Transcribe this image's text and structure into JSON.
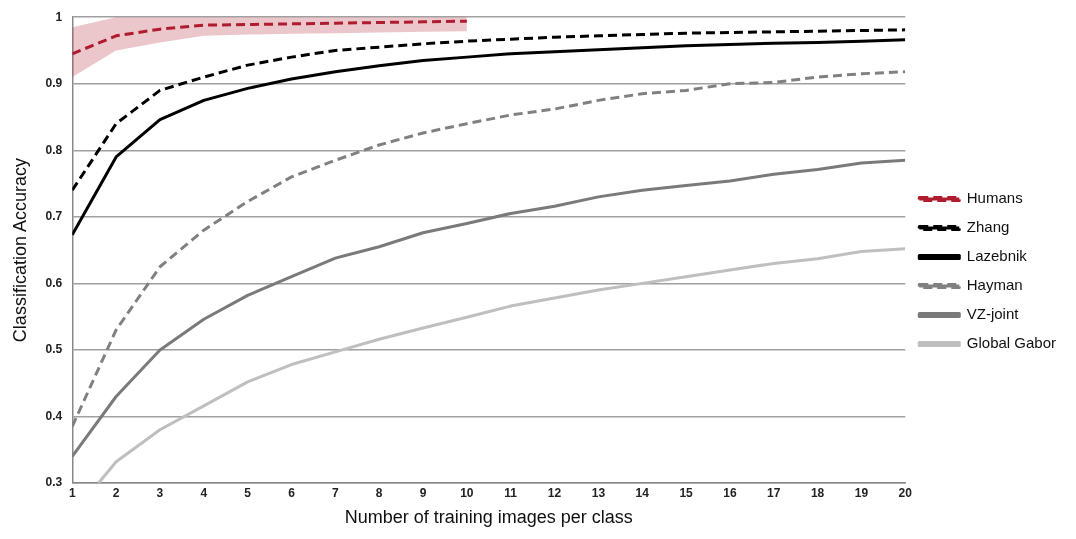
{
  "chart_data": {
    "type": "line",
    "xlabel": "Number of training images per class",
    "ylabel": "Classification Accuracy",
    "x": [
      1,
      2,
      3,
      4,
      5,
      6,
      7,
      8,
      9,
      10,
      11,
      12,
      13,
      14,
      15,
      16,
      17,
      18,
      19,
      20
    ],
    "xlim": [
      1,
      20
    ],
    "xticks": [
      1,
      2,
      3,
      4,
      5,
      6,
      7,
      8,
      9,
      10,
      11,
      12,
      13,
      14,
      15,
      16,
      17,
      18,
      19,
      20
    ],
    "ylim": [
      0.3,
      1
    ],
    "yticks": [
      0.3,
      0.4,
      0.5,
      0.6,
      0.7,
      0.8,
      0.9,
      1
    ],
    "grid": "y",
    "legend": "right",
    "marker": "none",
    "series": [
      {
        "name": "Humans",
        "color": "#b01c2e",
        "line_style": "dashed",
        "x": [
          1,
          2,
          3,
          4,
          5,
          6,
          7,
          8,
          9,
          10
        ],
        "values": [
          0.945,
          0.972,
          0.982,
          0.988,
          0.989,
          0.99,
          0.991,
          0.992,
          0.993,
          0.994
        ],
        "lower": [
          0.91,
          0.95,
          0.962,
          0.972,
          0.974,
          0.975,
          0.976,
          0.977,
          0.978,
          0.979
        ],
        "upper": [
          0.985,
          1,
          1,
          1,
          1,
          1,
          1,
          1,
          1,
          1
        ]
      },
      {
        "name": "Zhang",
        "color": "#000000",
        "line_style": "dashed",
        "values": [
          0.74,
          0.84,
          0.89,
          0.91,
          0.928,
          0.94,
          0.95,
          0.955,
          0.96,
          0.964,
          0.967,
          0.97,
          0.972,
          0.974,
          0.976,
          0.977,
          0.978,
          0.979,
          0.98,
          0.981
        ]
      },
      {
        "name": "Lazebnik",
        "color": "#000000",
        "line_style": "solid",
        "values": [
          0.673,
          0.79,
          0.846,
          0.875,
          0.893,
          0.907,
          0.918,
          0.927,
          0.935,
          0.94,
          0.945,
          0.948,
          0.951,
          0.954,
          0.957,
          0.959,
          0.961,
          0.962,
          0.964,
          0.966
        ]
      },
      {
        "name": "Hayman",
        "color": "#808080",
        "line_style": "dashed",
        "values": [
          0.385,
          0.53,
          0.625,
          0.68,
          0.723,
          0.76,
          0.785,
          0.808,
          0.826,
          0.84,
          0.853,
          0.862,
          0.875,
          0.885,
          0.89,
          0.9,
          0.902,
          0.91,
          0.915,
          0.918
        ]
      },
      {
        "name": "VZ-joint",
        "color": "#7a7a7a",
        "line_style": "solid",
        "values": [
          0.34,
          0.43,
          0.5,
          0.546,
          0.582,
          0.61,
          0.638,
          0.655,
          0.676,
          0.69,
          0.705,
          0.716,
          0.73,
          0.74,
          0.747,
          0.754,
          0.764,
          0.771,
          0.781,
          0.785
        ]
      },
      {
        "name": "Global Gabor",
        "color": "#bfbfbf",
        "line_style": "solid",
        "x": [
          1.6,
          2,
          3,
          4,
          5,
          6,
          7,
          8,
          9,
          10,
          11,
          12,
          13,
          14,
          15,
          16,
          17,
          18,
          19,
          20
        ],
        "values": [
          0.3,
          0.332,
          0.38,
          0.416,
          0.452,
          0.478,
          0.497,
          0.516,
          0.533,
          0.549,
          0.566,
          0.578,
          0.59,
          0.6,
          0.61,
          0.62,
          0.63,
          0.637,
          0.648,
          0.652
        ]
      }
    ]
  }
}
